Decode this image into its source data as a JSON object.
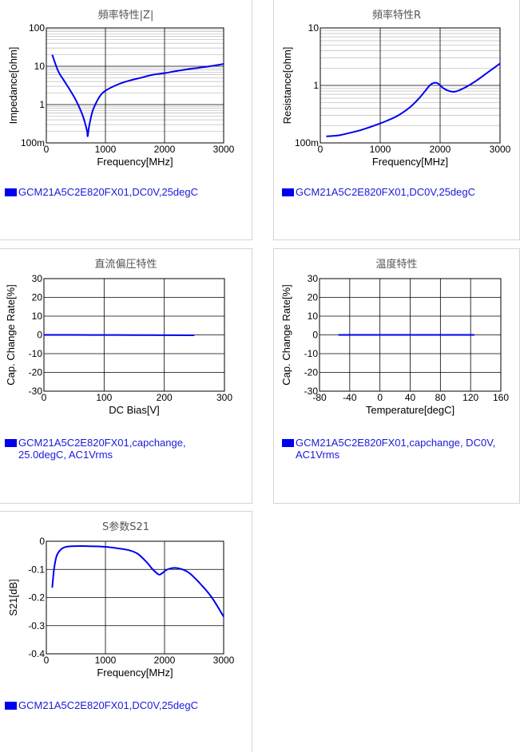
{
  "colors": {
    "series": "#0000ee",
    "grid_major": "#000000",
    "grid_minor": "#bbbbbb",
    "legend_text": "#1a1adc",
    "title": "#555555"
  },
  "chart_data": [
    {
      "id": "impedance",
      "type": "line",
      "title": "頻率特性|Z|",
      "xlabel": "Frequency[MHz]",
      "ylabel": "Impedance[ohm]",
      "xlim": [
        0,
        3000
      ],
      "ylim": [
        0.1,
        100
      ],
      "yscale": "log",
      "xticks": [
        0,
        1000,
        2000,
        3000
      ],
      "xtick_labels": [
        "0",
        "1000",
        "2000",
        "3000"
      ],
      "yticks": [
        0.1,
        1,
        10,
        100
      ],
      "ytick_labels": [
        "100m",
        "1",
        "10",
        "100"
      ],
      "legend": "GCM21A5C2E820FX01,DC0V,25degC",
      "series": [
        {
          "name": "GCM21A5C2E820FX01,DC0V,25degC",
          "x": [
            100,
            200,
            300,
            400,
            500,
            600,
            650,
            690,
            700,
            720,
            760,
            800,
            900,
            1000,
            1200,
            1400,
            1600,
            1800,
            2000,
            2200,
            2500,
            2800,
            3000
          ],
          "y": [
            20,
            7.5,
            4.2,
            2.4,
            1.3,
            0.6,
            0.35,
            0.2,
            0.15,
            0.25,
            0.5,
            0.8,
            1.6,
            2.3,
            3.3,
            4.2,
            5.0,
            6.0,
            6.6,
            7.5,
            8.8,
            10.2,
            11.5
          ]
        }
      ]
    },
    {
      "id": "resistance",
      "type": "line",
      "title": "頻率特性R",
      "xlabel": "Frequency[MHz]",
      "ylabel": "Resistance[ohm]",
      "xlim": [
        0,
        3000
      ],
      "ylim": [
        0.1,
        10
      ],
      "yscale": "log",
      "xticks": [
        0,
        1000,
        2000,
        3000
      ],
      "xtick_labels": [
        "0",
        "1000",
        "2000",
        "3000"
      ],
      "yticks": [
        0.1,
        1,
        10
      ],
      "ytick_labels": [
        "100m",
        "1",
        "10"
      ],
      "legend": "GCM21A5C2E820FX01,DC0V,25degC",
      "series": [
        {
          "name": "GCM21A5C2E820FX01,DC0V,25degC",
          "x": [
            100,
            300,
            500,
            700,
            900,
            1100,
            1300,
            1500,
            1650,
            1750,
            1850,
            1950,
            2050,
            2150,
            2250,
            2400,
            2600,
            2800,
            3000
          ],
          "y": [
            0.13,
            0.135,
            0.15,
            0.17,
            0.2,
            0.24,
            0.3,
            0.42,
            0.6,
            0.8,
            1.05,
            1.1,
            0.9,
            0.8,
            0.78,
            0.9,
            1.2,
            1.7,
            2.4
          ]
        }
      ]
    },
    {
      "id": "dcbias",
      "type": "line",
      "title": "直流偏圧特性",
      "xlabel": "DC Bias[V]",
      "ylabel": "Cap. Change Rate[%]",
      "xlim": [
        0,
        300
      ],
      "ylim": [
        -30,
        30
      ],
      "yscale": "linear",
      "xticks": [
        0,
        100,
        200,
        300
      ],
      "xtick_labels": [
        "0",
        "100",
        "200",
        "300"
      ],
      "yticks": [
        -30,
        -20,
        -10,
        0,
        10,
        20,
        30
      ],
      "ytick_labels": [
        "-30",
        "-20",
        "-10",
        "0",
        "10",
        "20",
        "30"
      ],
      "legend": "GCM21A5C2E820FX01,capchange,\n25.0degC, AC1Vrms",
      "series": [
        {
          "name": "GCM21A5C2E820FX01,capchange, 25.0degC, AC1Vrms",
          "x": [
            0,
            50,
            100,
            150,
            200,
            250
          ],
          "y": [
            0,
            0,
            -0.05,
            -0.1,
            -0.15,
            -0.2
          ]
        }
      ]
    },
    {
      "id": "temperature",
      "type": "line",
      "title": "温度特性",
      "xlabel": "Temperature[degC]",
      "ylabel": "Cap. Change Rate[%]",
      "xlim": [
        -80,
        160
      ],
      "ylim": [
        -30,
        30
      ],
      "yscale": "linear",
      "xticks": [
        -80,
        -40,
        0,
        40,
        80,
        120,
        160
      ],
      "xtick_labels": [
        "-80",
        "-40",
        "0",
        "40",
        "80",
        "120",
        "160"
      ],
      "yticks": [
        -30,
        -20,
        -10,
        0,
        10,
        20,
        30
      ],
      "ytick_labels": [
        "-30",
        "-20",
        "-10",
        "0",
        "10",
        "20",
        "30"
      ],
      "legend": "GCM21A5C2E820FX01,capchange, DC0V,\nAC1Vrms",
      "series": [
        {
          "name": "GCM21A5C2E820FX01,capchange, DC0V, AC1Vrms",
          "x": [
            -55,
            0,
            25,
            85,
            125
          ],
          "y": [
            0,
            0,
            0,
            0,
            0
          ]
        }
      ]
    },
    {
      "id": "s21",
      "type": "line",
      "title": "S参数S21",
      "xlabel": "Frequency[MHz]",
      "ylabel": "S21[dB]",
      "xlim": [
        0,
        3000
      ],
      "ylim": [
        -0.4,
        0
      ],
      "yscale": "linear",
      "xticks": [
        0,
        1000,
        2000,
        3000
      ],
      "xtick_labels": [
        "0",
        "1000",
        "2000",
        "3000"
      ],
      "yticks": [
        -0.4,
        -0.3,
        -0.2,
        -0.1,
        0
      ],
      "ytick_labels": [
        "-0.4",
        "-0.3",
        "-0.2",
        "-0.1",
        "0"
      ],
      "legend": "GCM21A5C2E820FX01,DC0V,25degC",
      "series": [
        {
          "name": "GCM21A5C2E820FX01,DC0V,25degC",
          "x": [
            100,
            130,
            170,
            220,
            300,
            400,
            600,
            800,
            1000,
            1200,
            1400,
            1550,
            1700,
            1800,
            1900,
            1950,
            2050,
            2200,
            2400,
            2600,
            2800,
            3000
          ],
          "y": [
            -0.165,
            -0.1,
            -0.055,
            -0.035,
            -0.022,
            -0.018,
            -0.017,
            -0.018,
            -0.02,
            -0.025,
            -0.032,
            -0.045,
            -0.075,
            -0.1,
            -0.118,
            -0.115,
            -0.1,
            -0.095,
            -0.11,
            -0.15,
            -0.2,
            -0.268
          ]
        }
      ]
    }
  ]
}
